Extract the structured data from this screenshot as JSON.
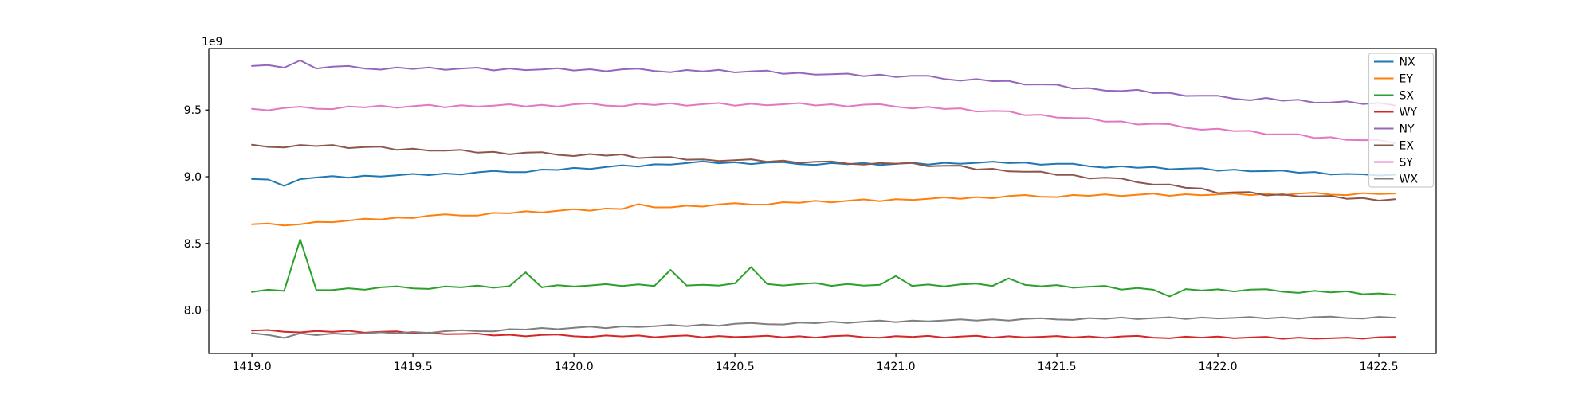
{
  "figure": {
    "background": "#ffffff",
    "text_color": "#000000"
  },
  "chart_data": {
    "type": "line",
    "title": "",
    "xlabel": "",
    "ylabel": "",
    "offset_text": "1e9",
    "grid": false,
    "xlim": [
      1418.866,
      1422.678
    ],
    "ylim": [
      7.675,
      9.961
    ],
    "xticks": {
      "values": [
        1419.0,
        1419.5,
        1420.0,
        1420.5,
        1421.0,
        1421.5,
        1422.0,
        1422.5
      ],
      "labels": [
        "1419.0",
        "1419.5",
        "1420.0",
        "1420.5",
        "1421.0",
        "1421.5",
        "1422.0",
        "1422.5"
      ]
    },
    "yticks": {
      "values": [
        8.0,
        8.5,
        9.0,
        9.5
      ],
      "labels": [
        "8.0",
        "8.5",
        "9.0",
        "9.5"
      ]
    },
    "legend": {
      "position": "upper right",
      "border_color": "#cccccc",
      "background": "rgba(255,255,255,0.8)"
    },
    "x": [
      1419.0,
      1419.05,
      1419.1,
      1419.15,
      1419.2,
      1419.25,
      1419.3,
      1419.35,
      1419.4,
      1419.45,
      1419.5,
      1419.55,
      1419.6,
      1419.65,
      1419.7,
      1419.75,
      1419.8,
      1419.85,
      1419.9,
      1419.95,
      1420.0,
      1420.05,
      1420.1,
      1420.15,
      1420.2,
      1420.25,
      1420.3,
      1420.35,
      1420.4,
      1420.45,
      1420.5,
      1420.55,
      1420.6,
      1420.65,
      1420.7,
      1420.75,
      1420.8,
      1420.85,
      1420.9,
      1420.95,
      1421.0,
      1421.05,
      1421.1,
      1421.15,
      1421.2,
      1421.25,
      1421.3,
      1421.35,
      1421.4,
      1421.45,
      1421.5,
      1421.55,
      1421.6,
      1421.65,
      1421.7,
      1421.75,
      1421.8,
      1421.85,
      1421.9,
      1421.95,
      1422.0,
      1422.05,
      1422.1,
      1422.15,
      1422.2,
      1422.25,
      1422.3,
      1422.35,
      1422.4,
      1422.45,
      1422.5,
      1422.55
    ],
    "series": [
      {
        "name": "NX",
        "color": "#1f77b4",
        "values": [
          8.983,
          8.979,
          8.932,
          8.982,
          8.994,
          9.005,
          8.993,
          9.008,
          9.002,
          9.011,
          9.021,
          9.012,
          9.024,
          9.017,
          9.033,
          9.043,
          9.034,
          9.034,
          9.054,
          9.051,
          9.066,
          9.058,
          9.073,
          9.086,
          9.076,
          9.093,
          9.091,
          9.102,
          9.115,
          9.101,
          9.108,
          9.095,
          9.106,
          9.109,
          9.094,
          9.089,
          9.102,
          9.094,
          9.103,
          9.088,
          9.096,
          9.105,
          9.091,
          9.104,
          9.097,
          9.104,
          9.113,
          9.102,
          9.106,
          9.09,
          9.097,
          9.097,
          9.078,
          9.068,
          9.078,
          9.067,
          9.073,
          9.056,
          9.061,
          9.064,
          9.045,
          9.053,
          9.04,
          9.042,
          9.046,
          9.03,
          9.035,
          9.016,
          9.021,
          9.018,
          9.009,
          9.015
        ]
      },
      {
        "name": "EY",
        "color": "#ff7f0e",
        "values": [
          8.644,
          8.649,
          8.634,
          8.643,
          8.661,
          8.659,
          8.671,
          8.685,
          8.679,
          8.694,
          8.69,
          8.708,
          8.718,
          8.709,
          8.709,
          8.729,
          8.726,
          8.741,
          8.732,
          8.745,
          8.757,
          8.746,
          8.762,
          8.758,
          8.795,
          8.77,
          8.77,
          8.783,
          8.776,
          8.793,
          8.802,
          8.792,
          8.791,
          8.809,
          8.805,
          8.819,
          8.808,
          8.82,
          8.83,
          8.817,
          8.832,
          8.826,
          8.834,
          8.845,
          8.835,
          8.847,
          8.839,
          8.855,
          8.863,
          8.85,
          8.847,
          8.863,
          8.857,
          8.868,
          8.855,
          8.865,
          8.873,
          8.857,
          8.869,
          8.861,
          8.867,
          8.874,
          8.862,
          8.872,
          8.861,
          8.874,
          8.88,
          8.866,
          8.862,
          8.877,
          8.87,
          8.874
        ]
      },
      {
        "name": "SX",
        "color": "#2ca02c",
        "values": [
          8.136,
          8.153,
          8.144,
          8.53,
          8.15,
          8.151,
          8.164,
          8.153,
          8.171,
          8.179,
          8.163,
          8.159,
          8.178,
          8.171,
          8.184,
          8.168,
          8.18,
          8.283,
          8.171,
          8.187,
          8.177,
          8.185,
          8.195,
          8.181,
          8.193,
          8.181,
          8.302,
          8.185,
          8.19,
          8.184,
          8.201,
          8.322,
          8.196,
          8.185,
          8.195,
          8.203,
          8.182,
          8.196,
          8.184,
          8.19,
          8.255,
          8.182,
          8.192,
          8.178,
          8.193,
          8.199,
          8.181,
          8.238,
          8.19,
          8.179,
          8.188,
          8.168,
          8.176,
          8.182,
          8.154,
          8.166,
          8.153,
          8.102,
          8.158,
          8.147,
          8.156,
          8.14,
          8.154,
          8.157,
          8.138,
          8.129,
          8.145,
          8.133,
          8.141,
          8.119,
          8.125,
          8.115
        ]
      },
      {
        "name": "WY",
        "color": "#d62728",
        "values": [
          7.847,
          7.851,
          7.838,
          7.833,
          7.844,
          7.837,
          7.845,
          7.831,
          7.838,
          7.841,
          7.824,
          7.831,
          7.82,
          7.821,
          7.824,
          7.81,
          7.815,
          7.804,
          7.814,
          7.817,
          7.804,
          7.799,
          7.81,
          7.803,
          7.81,
          7.797,
          7.805,
          7.81,
          7.796,
          7.806,
          7.798,
          7.802,
          7.808,
          7.796,
          7.804,
          7.794,
          7.805,
          7.809,
          7.797,
          7.793,
          7.805,
          7.799,
          7.807,
          7.794,
          7.802,
          7.808,
          7.794,
          7.804,
          7.796,
          7.8,
          7.806,
          7.795,
          7.803,
          7.792,
          7.803,
          7.807,
          7.794,
          7.789,
          7.801,
          7.794,
          7.802,
          7.789,
          7.795,
          7.8,
          7.785,
          7.794,
          7.786,
          7.789,
          7.794,
          7.786,
          7.797,
          7.8
        ]
      },
      {
        "name": "NY",
        "color": "#9467bd",
        "values": [
          9.83,
          9.837,
          9.818,
          9.872,
          9.811,
          9.825,
          9.83,
          9.811,
          9.803,
          9.819,
          9.808,
          9.819,
          9.801,
          9.811,
          9.818,
          9.797,
          9.811,
          9.799,
          9.804,
          9.813,
          9.796,
          9.806,
          9.79,
          9.805,
          9.81,
          9.792,
          9.784,
          9.8,
          9.789,
          9.801,
          9.782,
          9.79,
          9.795,
          9.771,
          9.779,
          9.765,
          9.768,
          9.773,
          9.754,
          9.765,
          9.748,
          9.757,
          9.757,
          9.733,
          9.72,
          9.732,
          9.716,
          9.718,
          9.691,
          9.692,
          9.69,
          9.661,
          9.665,
          9.645,
          9.642,
          9.651,
          9.627,
          9.629,
          9.606,
          9.607,
          9.607,
          9.585,
          9.573,
          9.591,
          9.57,
          9.577,
          9.555,
          9.557,
          9.565,
          9.545,
          9.554,
          9.534
        ]
      },
      {
        "name": "EX",
        "color": "#8c564b",
        "values": [
          9.24,
          9.224,
          9.219,
          9.238,
          9.23,
          9.238,
          9.215,
          9.222,
          9.225,
          9.201,
          9.21,
          9.195,
          9.196,
          9.201,
          9.18,
          9.187,
          9.168,
          9.181,
          9.184,
          9.164,
          9.155,
          9.17,
          9.158,
          9.167,
          9.14,
          9.146,
          9.148,
          9.128,
          9.13,
          9.118,
          9.124,
          9.131,
          9.112,
          9.121,
          9.103,
          9.112,
          9.114,
          9.098,
          9.091,
          9.102,
          9.098,
          9.103,
          9.078,
          9.082,
          9.083,
          9.054,
          9.06,
          9.04,
          9.037,
          9.038,
          9.013,
          9.013,
          8.987,
          8.992,
          8.987,
          8.958,
          8.941,
          8.942,
          8.917,
          8.912,
          8.877,
          8.883,
          8.885,
          8.86,
          8.868,
          8.852,
          8.853,
          8.856,
          8.835,
          8.84,
          8.821,
          8.831
        ]
      },
      {
        "name": "SY",
        "color": "#e377c2",
        "values": [
          9.509,
          9.498,
          9.516,
          9.525,
          9.51,
          9.507,
          9.527,
          9.52,
          9.533,
          9.517,
          9.529,
          9.539,
          9.52,
          9.536,
          9.526,
          9.533,
          9.543,
          9.527,
          9.539,
          9.526,
          9.543,
          9.55,
          9.533,
          9.528,
          9.547,
          9.538,
          9.551,
          9.533,
          9.544,
          9.553,
          9.533,
          9.547,
          9.536,
          9.543,
          9.552,
          9.534,
          9.543,
          9.527,
          9.54,
          9.544,
          9.525,
          9.512,
          9.524,
          9.508,
          9.513,
          9.489,
          9.493,
          9.491,
          9.461,
          9.465,
          9.444,
          9.44,
          9.439,
          9.413,
          9.415,
          9.391,
          9.397,
          9.394,
          9.367,
          9.352,
          9.36,
          9.342,
          9.344,
          9.317,
          9.318,
          9.318,
          9.29,
          9.296,
          9.276,
          9.274,
          9.275,
          9.251
        ]
      },
      {
        "name": "WX",
        "color": "#7f7f7f",
        "values": [
          7.827,
          7.814,
          7.792,
          7.826,
          7.812,
          7.824,
          7.819,
          7.826,
          7.834,
          7.826,
          7.836,
          7.829,
          7.842,
          7.85,
          7.842,
          7.841,
          7.857,
          7.854,
          7.866,
          7.857,
          7.868,
          7.877,
          7.865,
          7.878,
          7.873,
          7.88,
          7.889,
          7.88,
          7.891,
          7.883,
          7.897,
          7.903,
          7.894,
          7.892,
          7.906,
          7.902,
          7.913,
          7.903,
          7.913,
          7.921,
          7.909,
          7.921,
          7.915,
          7.922,
          7.93,
          7.921,
          7.93,
          7.921,
          7.934,
          7.939,
          7.929,
          7.926,
          7.94,
          7.934,
          7.944,
          7.932,
          7.94,
          7.946,
          7.933,
          7.944,
          7.937,
          7.941,
          7.948,
          7.937,
          7.945,
          7.935,
          7.947,
          7.951,
          7.94,
          7.936,
          7.949,
          7.943
        ]
      }
    ]
  }
}
